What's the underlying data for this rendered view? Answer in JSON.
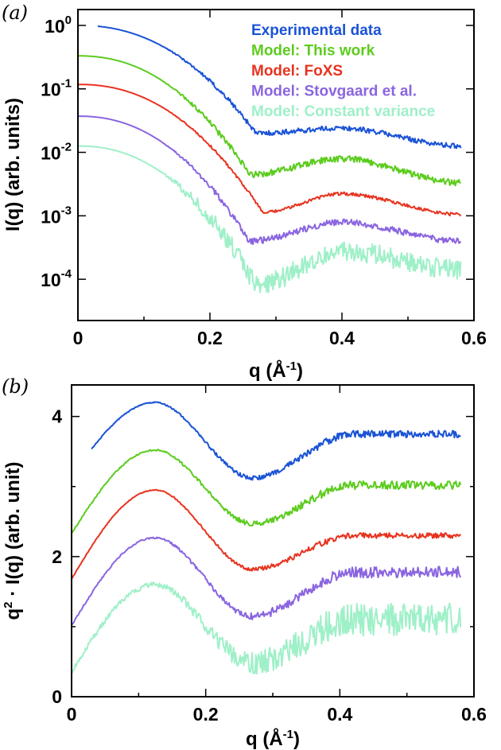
{
  "colors": {
    "experimental": "#1a53d6",
    "this_work": "#5ccc1e",
    "foxs": "#e8331f",
    "stovgaard": "#8a65e0",
    "constant_variance": "#9ff0c8"
  },
  "chart_data": [
    {
      "panel": "(a)",
      "type": "line",
      "ylog": true,
      "xlabel": "q (Å",
      "xlabel_sup": "-1",
      "xlabel_tail": ")",
      "ylabel": "I(q) (arb. units)",
      "xlim": [
        0,
        0.6
      ],
      "ylim_exp": [
        -4.65,
        0.25
      ],
      "xticks": [
        "0",
        "0.2",
        "0.4",
        "0.6"
      ],
      "xtick_values": [
        0,
        0.2,
        0.4,
        0.6
      ],
      "yticks": [
        {
          "base": "10",
          "exp": "0",
          "value": 0
        },
        {
          "base": "10",
          "exp": "-1",
          "value": -1
        },
        {
          "base": "10",
          "exp": "-2",
          "value": -2
        },
        {
          "base": "10",
          "exp": "-3",
          "value": -3
        },
        {
          "base": "10",
          "exp": "-4",
          "value": -4
        }
      ],
      "legend": [
        "Experimental data",
        "Model: This work",
        "Model: FoXS",
        "Model: Stovgaard et al.",
        "Model: Constant variance"
      ],
      "series": [
        {
          "name": "Experimental data",
          "color_key": "experimental",
          "q_start": 0.03,
          "q_end": 0.58,
          "log_I_at_q0": 0.0,
          "log_I_minimum": -1.7,
          "q_minimum": 0.27,
          "log_I_second_peak": -1.62,
          "log_I_end": -1.9,
          "noise": 0.04
        },
        {
          "name": "Model: This work",
          "color_key": "this_work",
          "q_start": 0.0,
          "q_end": 0.58,
          "log_I_at_q0": -0.48,
          "log_I_minimum": -2.35,
          "q_minimum": 0.26,
          "log_I_second_peak": -2.1,
          "log_I_end": -2.48,
          "noise": 0.05
        },
        {
          "name": "Model: FoXS",
          "color_key": "foxs",
          "q_start": 0.0,
          "q_end": 0.58,
          "log_I_at_q0": -0.93,
          "log_I_minimum": -2.95,
          "q_minimum": 0.28,
          "log_I_second_peak": -2.65,
          "log_I_end": -2.98,
          "noise": 0.025
        },
        {
          "name": "Model: Stovgaard et al.",
          "color_key": "stovgaard",
          "q_start": 0.0,
          "q_end": 0.58,
          "log_I_at_q0": -1.43,
          "log_I_minimum": -3.4,
          "q_minimum": 0.26,
          "log_I_second_peak": -3.1,
          "log_I_end": -3.4,
          "noise": 0.05
        },
        {
          "name": "Model: Constant variance",
          "color_key": "constant_variance",
          "q_start": 0.0,
          "q_end": 0.58,
          "log_I_at_q0": -1.9,
          "log_I_minimum": -4.1,
          "q_minimum": 0.27,
          "log_I_second_peak": -3.55,
          "log_I_end": -3.85,
          "noise": 0.16
        }
      ]
    },
    {
      "panel": "(b)",
      "type": "line",
      "xlabel": "q (Å",
      "xlabel_sup": "-1",
      "xlabel_tail": ")",
      "ylabel_pre": "q",
      "ylabel_sup": "2",
      "ylabel_post": " · I(q) (arb. unit)",
      "xlim": [
        0,
        0.6
      ],
      "ylim": [
        0,
        4.45
      ],
      "xticks": [
        "0",
        "0.2",
        "0.4",
        "0.6"
      ],
      "xtick_values": [
        0,
        0.2,
        0.4,
        0.6
      ],
      "yticks": [
        "0",
        "2",
        "4"
      ],
      "ytick_values": [
        0,
        2,
        4
      ],
      "series": [
        {
          "name": "Experimental data",
          "color_key": "experimental",
          "q_start": 0.03,
          "q_end": 0.58,
          "y_start": 3.15,
          "y_peak": 4.2,
          "q_peak": 0.125,
          "y_min": 3.12,
          "q_min": 0.27,
          "y_plateau": 3.75,
          "noise": 0.05
        },
        {
          "name": "Model: This work",
          "color_key": "this_work",
          "q_start": 0.0,
          "q_end": 0.58,
          "y_start": 2.33,
          "y_peak": 3.52,
          "q_peak": 0.125,
          "y_min": 2.47,
          "q_min": 0.27,
          "y_plateau": 3.02,
          "noise": 0.06
        },
        {
          "name": "Model: FoXS",
          "color_key": "foxs",
          "q_start": 0.0,
          "q_end": 0.58,
          "y_start": 1.68,
          "y_peak": 2.95,
          "q_peak": 0.125,
          "y_min": 1.82,
          "q_min": 0.27,
          "y_plateau": 2.3,
          "noise": 0.04
        },
        {
          "name": "Model: Stovgaard et al.",
          "color_key": "stovgaard",
          "q_start": 0.0,
          "q_end": 0.58,
          "y_start": 1.02,
          "y_peak": 2.27,
          "q_peak": 0.125,
          "y_min": 1.15,
          "q_min": 0.27,
          "y_plateau": 1.78,
          "noise": 0.08
        },
        {
          "name": "Model: Constant variance",
          "color_key": "constant_variance",
          "q_start": 0.0,
          "q_end": 0.58,
          "y_start": 0.35,
          "y_peak": 1.6,
          "q_peak": 0.125,
          "y_min": 0.48,
          "q_min": 0.27,
          "y_plateau": 1.1,
          "noise": 0.24
        }
      ]
    }
  ]
}
